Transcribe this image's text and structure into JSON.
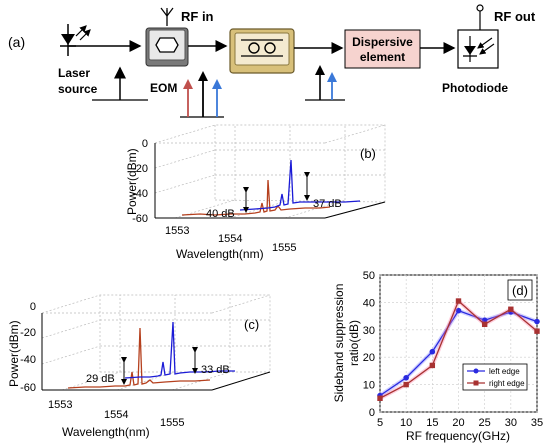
{
  "setup": {
    "panel_label": "(a)",
    "laser_label_1": "Laser",
    "laser_label_2": "source",
    "rf_in": "RF in",
    "eom": "EOM",
    "dispersive_1": "Dispersive",
    "dispersive_2": "element",
    "rf_out": "RF out",
    "photodiode": "Photodiode",
    "dispersive_fill": "#f6d3cf"
  },
  "spectrum_b": {
    "panel_label": "(b)",
    "ylabel": "Power(dBm)",
    "xlabel": "Wavelength(nm)",
    "yticks": [
      "0",
      "-20",
      "-40",
      "-60"
    ],
    "xticks": [
      "1553",
      "1554",
      "1555"
    ],
    "annotation_left": "40 dB",
    "annotation_right": "37 dB"
  },
  "spectrum_c": {
    "panel_label": "(c)",
    "ylabel": "Power(dBm)",
    "xlabel": "Wavelength(nm)",
    "yticks": [
      "0",
      "-20",
      "-40",
      "-60"
    ],
    "xticks": [
      "1553",
      "1554",
      "1555"
    ],
    "annotation_left": "29 dB",
    "annotation_right": "33 dB"
  },
  "colors": {
    "red_series": "#b5401e",
    "blue_series": "#1b1bd6",
    "red_marker": "#a83232",
    "blue_marker": "#2a2ae0"
  },
  "chart_data": {
    "type": "line",
    "panel_label": "(d)",
    "xlabel": "RF frequency(GHz)",
    "ylabel_1": "Sideband suppression",
    "ylabel_2": "ratio(dB)",
    "x": [
      5,
      10,
      15,
      20,
      25,
      30,
      35
    ],
    "xticks": [
      "5",
      "10",
      "15",
      "20",
      "25",
      "30",
      "35"
    ],
    "yticks": [
      "0",
      "10",
      "20",
      "30",
      "40",
      "50"
    ],
    "xlim": [
      5,
      35
    ],
    "ylim": [
      0,
      50
    ],
    "series": [
      {
        "name": "left edge",
        "values": [
          6,
          12.5,
          22,
          37,
          33.5,
          36.5,
          33
        ]
      },
      {
        "name": "right edge",
        "values": [
          5,
          10,
          17,
          40.5,
          32,
          37.5,
          29.5
        ]
      }
    ],
    "legend": "center-right",
    "grid": true
  }
}
